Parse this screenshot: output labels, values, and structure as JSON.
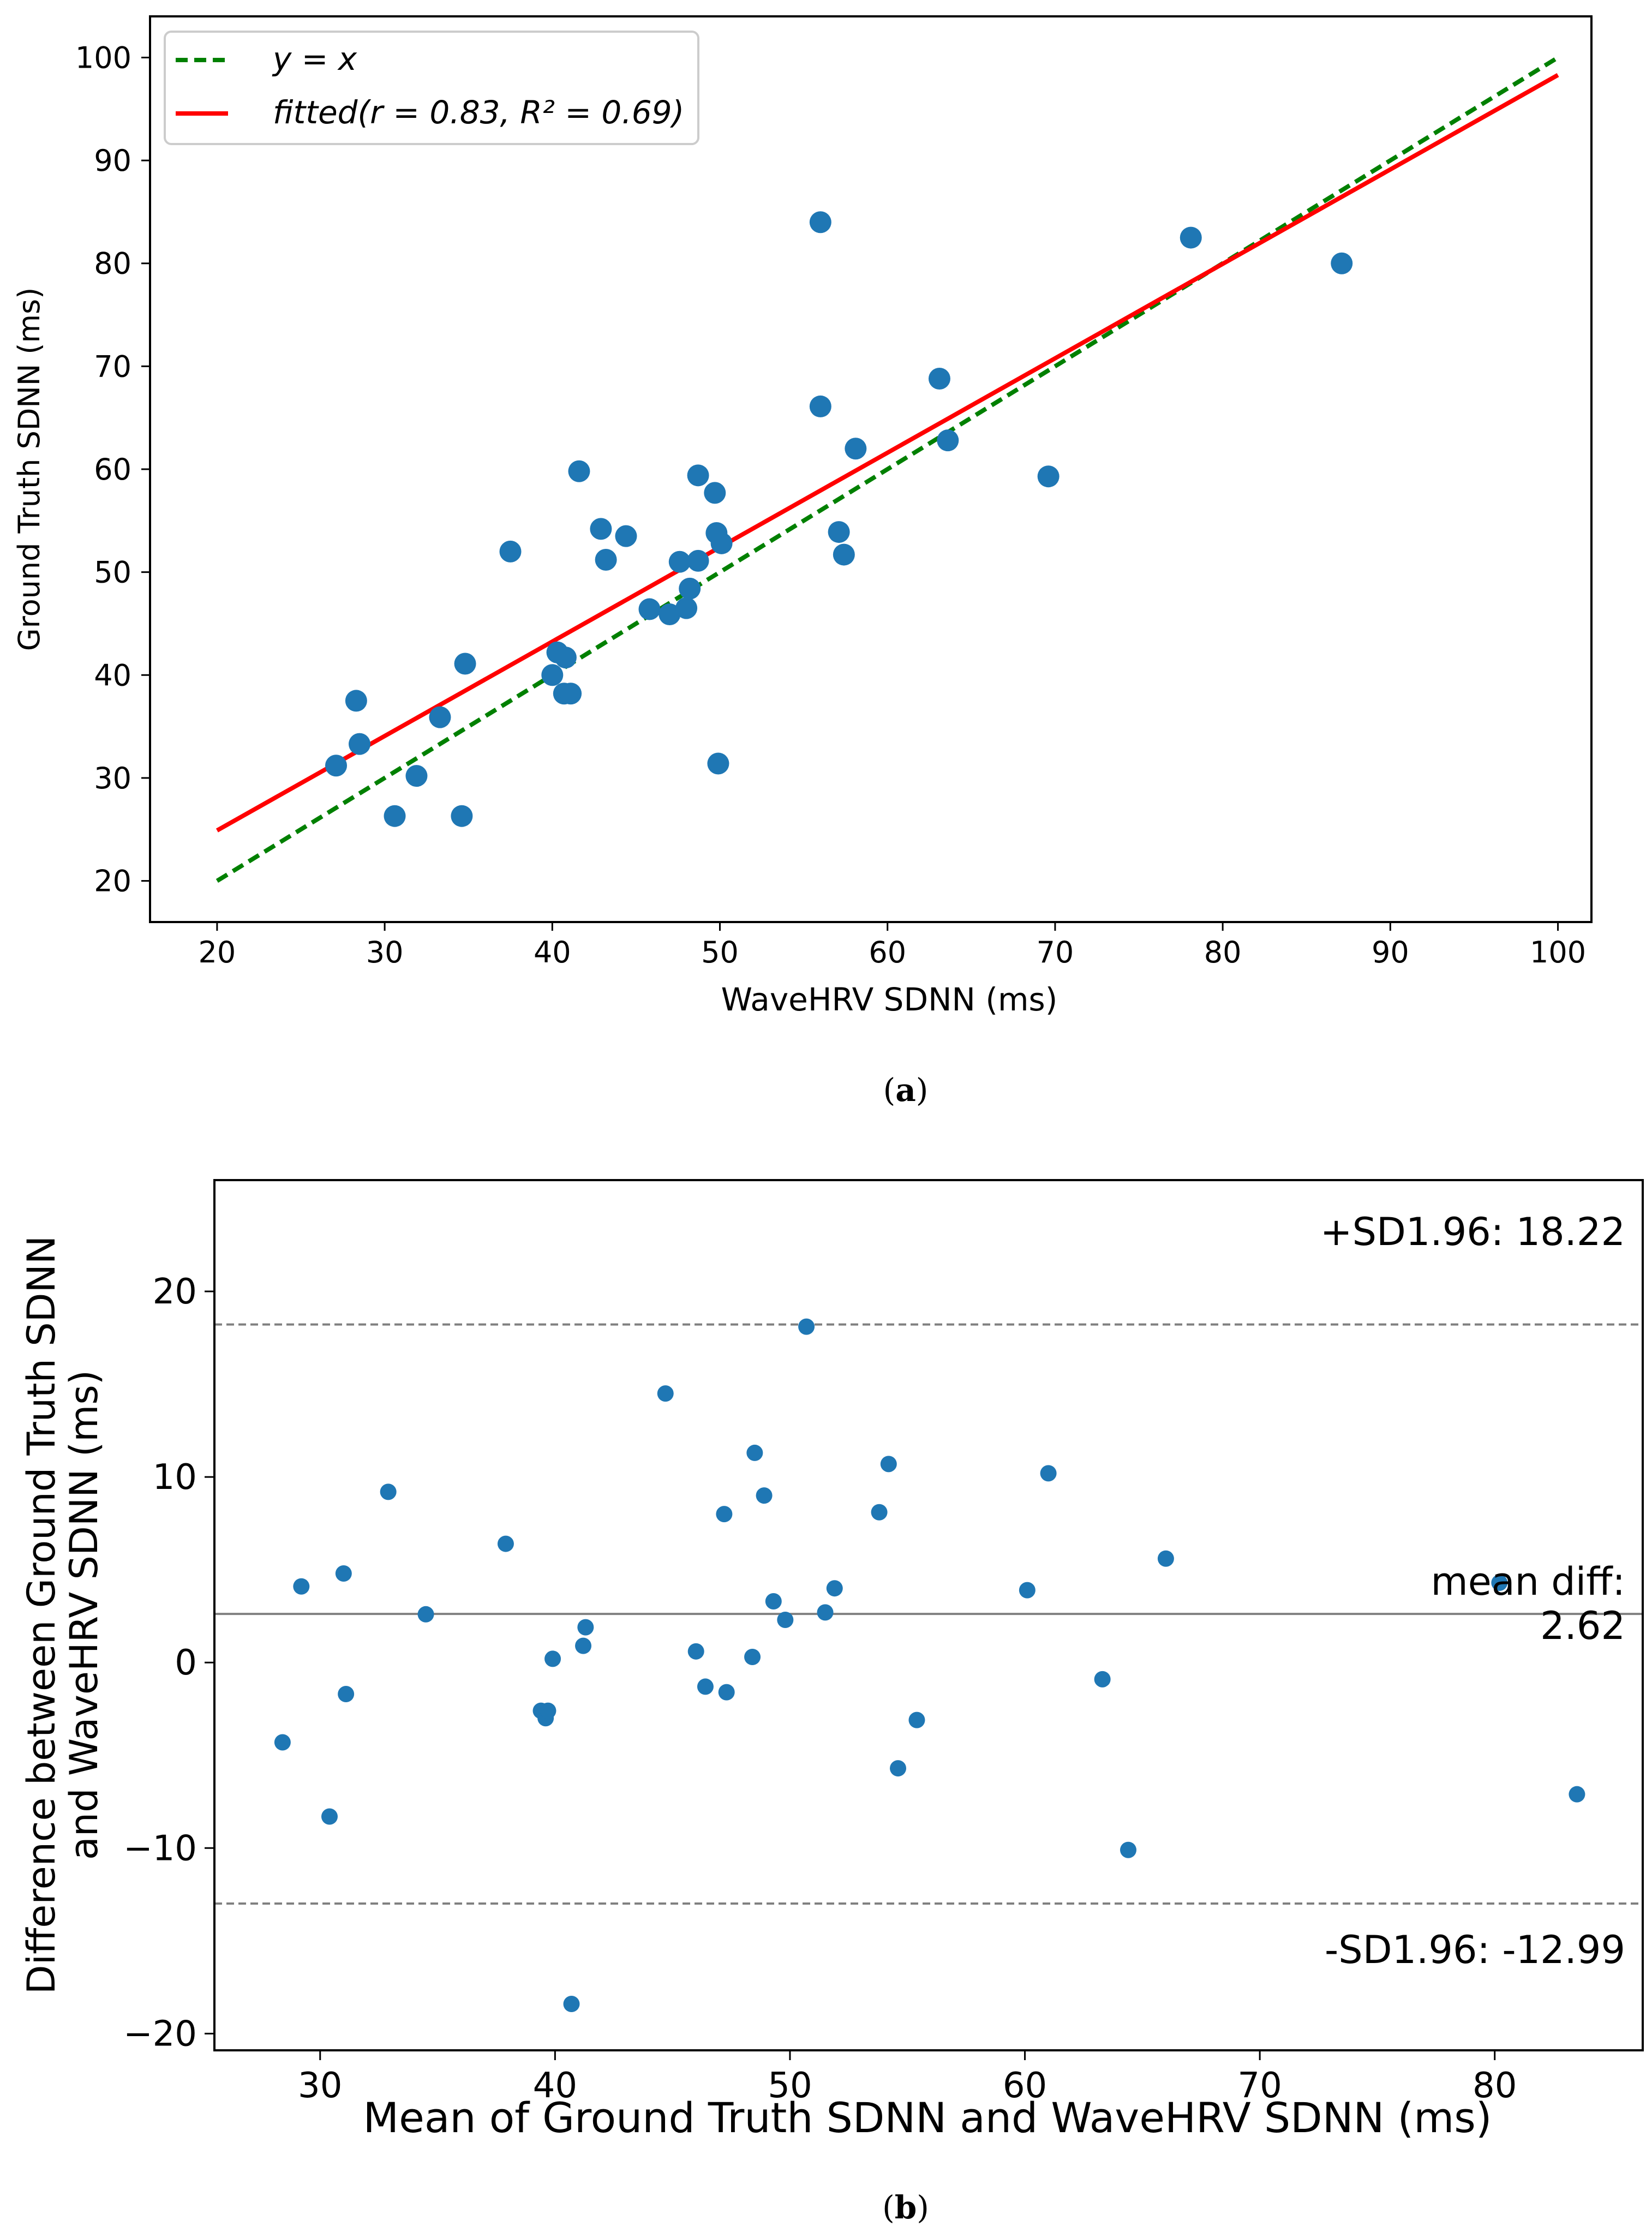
{
  "colors": {
    "points": "#1f77b4",
    "fit_line": "#ff0000",
    "identity_line": "#008000",
    "ref_lines": "#808080",
    "axes": "#000000"
  },
  "captions": {
    "a": "a",
    "b": "b"
  },
  "chart_data": [
    {
      "id": "a",
      "type": "scatter",
      "xlabel": "WaveHRV SDNN (ms)",
      "ylabel": "Ground Truth SDNN (ms)",
      "xlim": [
        16,
        102
      ],
      "ylim": [
        16,
        104
      ],
      "xticks": [
        20,
        30,
        40,
        50,
        60,
        70,
        80,
        90,
        100
      ],
      "yticks": [
        20,
        30,
        40,
        50,
        60,
        70,
        80,
        90,
        100
      ],
      "legend_position": "top-left",
      "legend": [
        {
          "label": "y = x",
          "style": "dashed",
          "color": "#008000"
        },
        {
          "label": "fitted(r = 0.83, R² = 0.69)",
          "style": "solid",
          "color": "#ff0000"
        }
      ],
      "lines": {
        "identity": {
          "x": [
            20,
            100
          ],
          "y": [
            20,
            100
          ]
        },
        "fitted": {
          "x": [
            20,
            100
          ],
          "y": [
            24.9,
            98.3
          ]
        }
      },
      "points": [
        [
          27.1,
          31.2
        ],
        [
          28.3,
          37.5
        ],
        [
          28.5,
          33.3
        ],
        [
          30.6,
          26.3
        ],
        [
          31.9,
          30.2
        ],
        [
          33.3,
          35.9
        ],
        [
          34.6,
          26.3
        ],
        [
          34.8,
          41.1
        ],
        [
          37.5,
          52.0
        ],
        [
          40.0,
          40.0
        ],
        [
          40.3,
          42.2
        ],
        [
          40.7,
          38.2
        ],
        [
          40.8,
          41.7
        ],
        [
          41.1,
          38.2
        ],
        [
          41.6,
          59.8
        ],
        [
          42.9,
          54.2
        ],
        [
          43.2,
          51.2
        ],
        [
          44.4,
          53.5
        ],
        [
          45.8,
          46.4
        ],
        [
          47.0,
          45.9
        ],
        [
          47.6,
          51.0
        ],
        [
          48.0,
          46.5
        ],
        [
          48.2,
          48.4
        ],
        [
          48.7,
          51.1
        ],
        [
          48.7,
          59.4
        ],
        [
          49.7,
          57.7
        ],
        [
          49.8,
          53.8
        ],
        [
          49.9,
          31.4
        ],
        [
          50.1,
          52.8
        ],
        [
          56.0,
          84.0
        ],
        [
          56.0,
          66.1
        ],
        [
          57.1,
          53.9
        ],
        [
          57.4,
          51.7
        ],
        [
          58.1,
          62.0
        ],
        [
          63.1,
          68.8
        ],
        [
          63.6,
          62.8
        ],
        [
          69.6,
          59.3
        ],
        [
          78.1,
          82.5
        ],
        [
          87.1,
          80.0
        ]
      ]
    },
    {
      "id": "b",
      "type": "scatter",
      "xlabel": "Mean of Ground Truth SDNN and WaveHRV SDNN (ms)",
      "ylabel_lines": [
        "Difference between Ground Truth SDNN",
        "and WaveHRV SDNN (ms)"
      ],
      "xlim": [
        25.5,
        86.3
      ],
      "ylim": [
        -20.9,
        26.0
      ],
      "xticks": [
        30,
        40,
        50,
        60,
        70,
        80
      ],
      "yticks": [
        -20,
        -10,
        0,
        10,
        20
      ],
      "reference_lines": [
        {
          "y": 18.22,
          "style": "dashed",
          "label": "+SD1.96: 18.22"
        },
        {
          "y": 2.62,
          "style": "solid",
          "label_lines": [
            "mean diff:",
            "2.62"
          ]
        },
        {
          "y": -12.99,
          "style": "dashed",
          "label": "-SD1.96: -12.99"
        }
      ],
      "points": [
        [
          28.4,
          -4.3
        ],
        [
          29.2,
          4.1
        ],
        [
          30.4,
          -8.3
        ],
        [
          31.0,
          4.8
        ],
        [
          31.1,
          -1.7
        ],
        [
          32.9,
          9.2
        ],
        [
          34.5,
          2.6
        ],
        [
          37.9,
          6.4
        ],
        [
          39.4,
          -2.6
        ],
        [
          39.6,
          -3.0
        ],
        [
          39.7,
          -2.6
        ],
        [
          39.9,
          0.2
        ],
        [
          40.7,
          -18.4
        ],
        [
          41.2,
          0.9
        ],
        [
          41.3,
          1.9
        ],
        [
          44.7,
          14.5
        ],
        [
          46.0,
          0.6
        ],
        [
          46.4,
          -1.3
        ],
        [
          47.2,
          8.0
        ],
        [
          47.3,
          -1.6
        ],
        [
          48.4,
          0.3
        ],
        [
          48.5,
          11.3
        ],
        [
          48.9,
          9.0
        ],
        [
          49.3,
          3.3
        ],
        [
          49.8,
          2.3
        ],
        [
          50.7,
          18.1
        ],
        [
          51.5,
          2.7
        ],
        [
          51.9,
          4.0
        ],
        [
          53.8,
          8.1
        ],
        [
          54.2,
          10.7
        ],
        [
          54.6,
          -5.7
        ],
        [
          55.4,
          -3.1
        ],
        [
          60.1,
          3.9
        ],
        [
          61.0,
          10.2
        ],
        [
          63.3,
          -0.9
        ],
        [
          64.4,
          -10.1
        ],
        [
          66.0,
          5.6
        ],
        [
          80.2,
          4.3
        ],
        [
          83.5,
          -7.1
        ]
      ]
    }
  ]
}
